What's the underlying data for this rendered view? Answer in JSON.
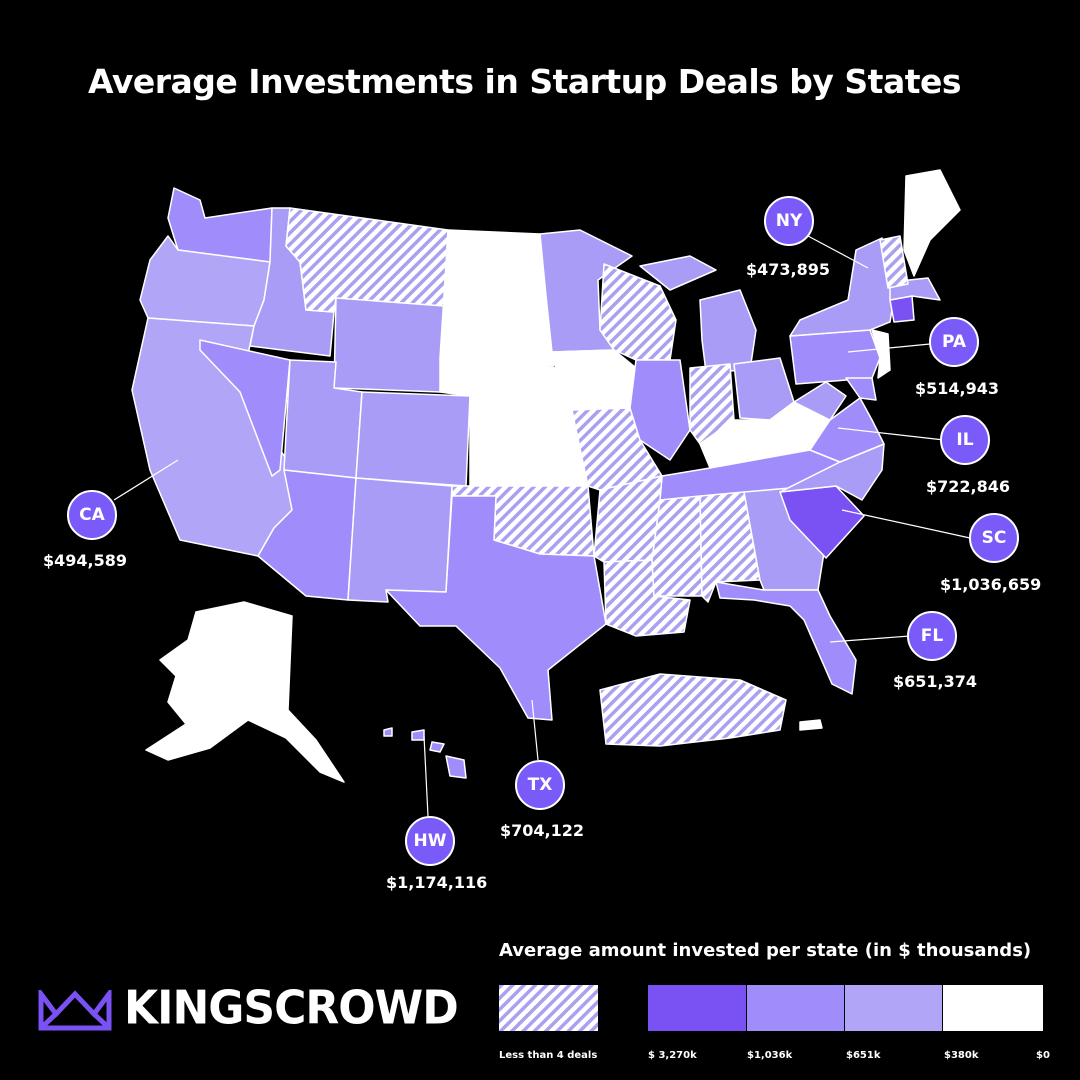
{
  "title": "Average Investments in Startup Deals by States",
  "callouts": [
    {
      "code": "NY",
      "amount": "$473,895"
    },
    {
      "code": "PA",
      "amount": "$514,943"
    },
    {
      "code": "IL",
      "amount": "$722,846"
    },
    {
      "code": "SC",
      "amount": "$1,036,659"
    },
    {
      "code": "FL",
      "amount": "$651,374"
    },
    {
      "code": "CA",
      "amount": "$494,589"
    },
    {
      "code": "TX",
      "amount": "$704,122"
    },
    {
      "code": "HW",
      "amount": "$1,174,116"
    }
  ],
  "legend": {
    "title": "Average amount invested per state (in $ thousands)",
    "hatched_label": "Less than 4 deals",
    "ticks": [
      "$ 3,270k",
      "$1,036k",
      "$651k",
      "$380k",
      "$0"
    ],
    "colors": [
      "#7a52f4",
      "#a08cfa",
      "#b0a5f7",
      "#ffffff"
    ],
    "hatch_color": "#a9a0f0"
  },
  "brand": {
    "name": "KINGSCROWD",
    "accent": "#7a52f4"
  },
  "colors": {
    "background": "#000000",
    "tier1": "#7a52f4",
    "tier2": "#9d89fa",
    "tier3": "#ada2f6",
    "white": "#ffffff"
  }
}
